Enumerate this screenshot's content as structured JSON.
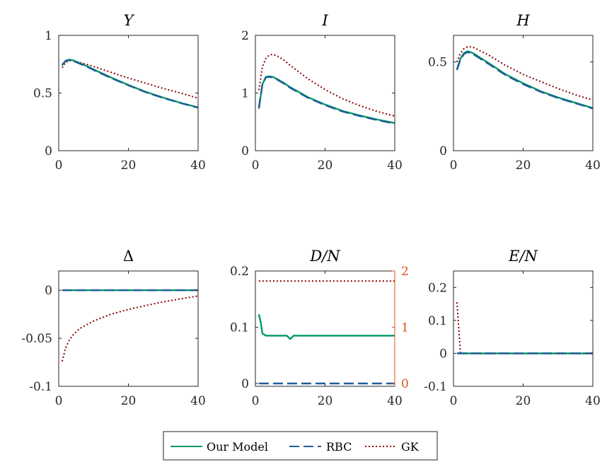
{
  "legend": [
    {
      "label": "Our Model",
      "color": "#009966",
      "dash": "solid"
    },
    {
      "label": "RBC",
      "color": "#1f5d99",
      "dash": "dashed"
    },
    {
      "label": "GK",
      "color": "#8b0000",
      "dash": "dotted"
    }
  ],
  "chart_data": [
    {
      "type": "line",
      "title": "Y",
      "xlim": [
        0,
        40
      ],
      "ylim": [
        0,
        1
      ],
      "xticks": [
        "0",
        "20",
        "40"
      ],
      "yticks": [
        0,
        0.5,
        1
      ],
      "ytick_labels": [
        "0",
        "0.5",
        "1"
      ],
      "series": [
        {
          "name": "Our Model",
          "x": [
            1,
            2,
            3,
            4,
            6,
            8,
            10,
            15,
            20,
            25,
            30,
            35,
            40
          ],
          "y": [
            0.74,
            0.78,
            0.79,
            0.785,
            0.76,
            0.735,
            0.705,
            0.635,
            0.57,
            0.51,
            0.46,
            0.415,
            0.375
          ]
        },
        {
          "name": "RBC",
          "x": [
            1,
            2,
            3,
            4,
            6,
            8,
            10,
            15,
            20,
            25,
            30,
            35,
            40
          ],
          "y": [
            0.745,
            0.78,
            0.785,
            0.78,
            0.755,
            0.73,
            0.7,
            0.63,
            0.567,
            0.507,
            0.457,
            0.413,
            0.373
          ]
        },
        {
          "name": "GK",
          "x": [
            1,
            2,
            3,
            4,
            6,
            8,
            10,
            15,
            20,
            25,
            30,
            35,
            40
          ],
          "y": [
            0.72,
            0.765,
            0.78,
            0.78,
            0.765,
            0.75,
            0.73,
            0.68,
            0.63,
            0.585,
            0.54,
            0.5,
            0.455
          ]
        }
      ]
    },
    {
      "type": "line",
      "title": "I",
      "xlim": [
        0,
        40
      ],
      "ylim": [
        0,
        2
      ],
      "xticks": [
        "0",
        "20",
        "40"
      ],
      "yticks": [
        0,
        1,
        2
      ],
      "ytick_labels": [
        "0",
        "1",
        "2"
      ],
      "series": [
        {
          "name": "Our Model",
          "x": [
            1,
            2,
            3,
            4,
            5,
            6,
            8,
            10,
            15,
            20,
            25,
            30,
            35,
            40
          ],
          "y": [
            0.73,
            1.15,
            1.28,
            1.29,
            1.28,
            1.25,
            1.18,
            1.1,
            0.93,
            0.8,
            0.69,
            0.61,
            0.54,
            0.48
          ]
        },
        {
          "name": "RBC",
          "x": [
            1,
            2,
            3,
            4,
            5,
            6,
            8,
            10,
            15,
            20,
            25,
            30,
            35,
            40
          ],
          "y": [
            0.74,
            1.15,
            1.27,
            1.28,
            1.27,
            1.24,
            1.17,
            1.09,
            0.92,
            0.79,
            0.68,
            0.6,
            0.53,
            0.47
          ]
        },
        {
          "name": "GK",
          "x": [
            1,
            2,
            3,
            4,
            5,
            6,
            8,
            10,
            15,
            20,
            25,
            30,
            35,
            40
          ],
          "y": [
            1.05,
            1.45,
            1.6,
            1.66,
            1.67,
            1.65,
            1.58,
            1.48,
            1.25,
            1.06,
            0.9,
            0.78,
            0.68,
            0.6
          ]
        }
      ]
    },
    {
      "type": "line",
      "title": "H",
      "xlim": [
        0,
        40
      ],
      "ylim": [
        0,
        0.65
      ],
      "xticks": [
        "0",
        "20",
        "40"
      ],
      "yticks": [
        0,
        0.5
      ],
      "ytick_labels": [
        "0",
        "0.5"
      ],
      "series": [
        {
          "name": "Our Model",
          "x": [
            1,
            2,
            3,
            4,
            5,
            6,
            8,
            10,
            15,
            20,
            25,
            30,
            35,
            40
          ],
          "y": [
            0.46,
            0.52,
            0.55,
            0.56,
            0.555,
            0.545,
            0.52,
            0.495,
            0.43,
            0.38,
            0.335,
            0.3,
            0.27,
            0.24
          ]
        },
        {
          "name": "RBC",
          "x": [
            1,
            2,
            3,
            4,
            5,
            6,
            8,
            10,
            15,
            20,
            25,
            30,
            35,
            40
          ],
          "y": [
            0.455,
            0.515,
            0.545,
            0.555,
            0.55,
            0.54,
            0.515,
            0.49,
            0.425,
            0.375,
            0.332,
            0.297,
            0.267,
            0.238
          ]
        },
        {
          "name": "GK",
          "x": [
            1,
            2,
            3,
            4,
            5,
            6,
            8,
            10,
            15,
            20,
            25,
            30,
            35,
            40
          ],
          "y": [
            0.5,
            0.55,
            0.575,
            0.585,
            0.585,
            0.58,
            0.56,
            0.54,
            0.48,
            0.43,
            0.39,
            0.35,
            0.315,
            0.285
          ]
        }
      ]
    },
    {
      "type": "line",
      "title": "Δ",
      "xlim": [
        0,
        40
      ],
      "ylim": [
        -0.1,
        0.02
      ],
      "xticks": [
        "0",
        "20",
        "40"
      ],
      "yticks": [
        -0.1,
        -0.05,
        0
      ],
      "ytick_labels": [
        "-0.1",
        "-0.05",
        "0"
      ],
      "series": [
        {
          "name": "Our Model",
          "x": [
            1,
            40
          ],
          "y": [
            0,
            0
          ]
        },
        {
          "name": "RBC",
          "x": [
            1,
            40
          ],
          "y": [
            0,
            0
          ]
        },
        {
          "name": "GK",
          "x": [
            1,
            2,
            3,
            4,
            6,
            8,
            10,
            15,
            20,
            25,
            30,
            35,
            40
          ],
          "y": [
            -0.074,
            -0.06,
            -0.052,
            -0.047,
            -0.04,
            -0.036,
            -0.032,
            -0.025,
            -0.02,
            -0.016,
            -0.012,
            -0.009,
            -0.006
          ]
        }
      ]
    },
    {
      "type": "line",
      "title": "D/N",
      "xlim": [
        0,
        40
      ],
      "ylim": [
        -0.005,
        0.2
      ],
      "xticks": [
        "0",
        "20",
        "40"
      ],
      "yticks": [
        0,
        0.1,
        0.2
      ],
      "ytick_labels": [
        "0",
        "0.1",
        "0.2"
      ],
      "y2lim": [
        -0.05,
        2
      ],
      "y2ticks": [
        0,
        1,
        2
      ],
      "y2tick_labels": [
        "0",
        "1",
        "2"
      ],
      "y2color": "#d95319",
      "series": [
        {
          "name": "Our Model",
          "x": [
            1,
            1.5,
            2,
            3,
            4,
            6,
            8,
            9,
            10,
            11,
            15,
            20,
            30,
            40
          ],
          "y": [
            0.123,
            0.11,
            0.089,
            0.085,
            0.085,
            0.085,
            0.085,
            0.085,
            0.079,
            0.085,
            0.085,
            0.085,
            0.085,
            0.085
          ]
        },
        {
          "name": "RBC",
          "x": [
            1,
            40
          ],
          "y": [
            0,
            0
          ]
        },
        {
          "name": "GK",
          "x": [
            1,
            40
          ],
          "y": [
            0.182,
            0.182
          ]
        }
      ]
    },
    {
      "type": "line",
      "title": "E/N",
      "xlim": [
        0,
        40
      ],
      "ylim": [
        -0.1,
        0.25
      ],
      "xticks": [
        "0",
        "20",
        "40"
      ],
      "yticks": [
        -0.1,
        0,
        0.1,
        0.2
      ],
      "ytick_labels": [
        "-0.1",
        "0",
        "0.1",
        "0.2"
      ],
      "series": [
        {
          "name": "Our Model",
          "x": [
            1,
            40
          ],
          "y": [
            0,
            0
          ]
        },
        {
          "name": "RBC",
          "x": [
            1,
            40
          ],
          "y": [
            0,
            0
          ]
        },
        {
          "name": "GK",
          "x": [
            1,
            2,
            3,
            40
          ],
          "y": [
            0.155,
            0.001,
            -0.001,
            -0.001
          ]
        }
      ]
    }
  ]
}
